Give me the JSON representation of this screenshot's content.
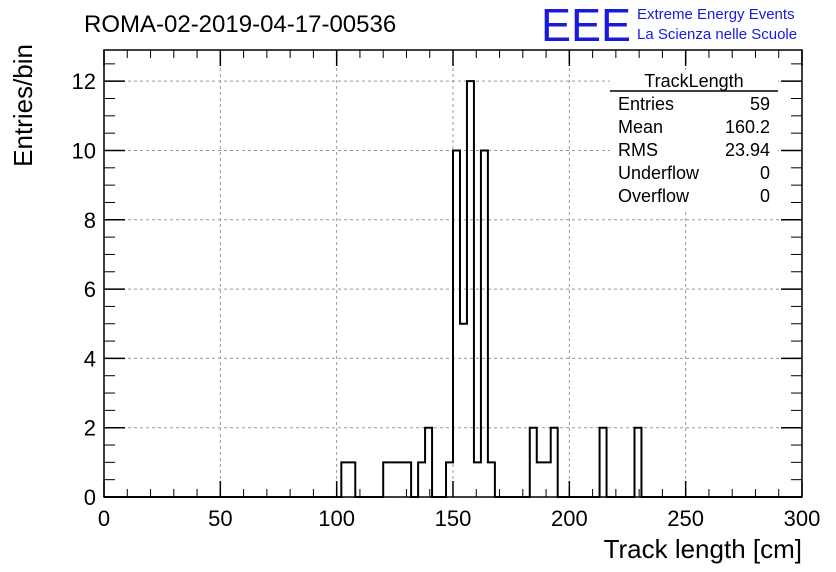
{
  "header": {
    "title": "ROMA-02-2019-04-17-00536",
    "logo_text": "EEE",
    "logo_line1": "Extreme Energy Events",
    "logo_line2": "La Scienza nelle Scuole",
    "logo_color": "#1a1adc"
  },
  "chart_data": {
    "type": "bar",
    "style": "step-histogram",
    "xlabel": "Track length [cm]",
    "ylabel": "Entries/bin",
    "xlim": [
      0,
      300
    ],
    "ylim": [
      0,
      12.9
    ],
    "grid": true,
    "xticks": [
      "0",
      "50",
      "100",
      "150",
      "200",
      "250",
      "300"
    ],
    "yticks": [
      "0",
      "2",
      "4",
      "6",
      "8",
      "10",
      "12"
    ],
    "bin_edges": [
      0,
      300
    ],
    "bin_count": 100,
    "bins": [
      {
        "x": 102,
        "value": 1
      },
      {
        "x": 105,
        "value": 1
      },
      {
        "x": 120,
        "value": 1
      },
      {
        "x": 123,
        "value": 1
      },
      {
        "x": 126,
        "value": 1
      },
      {
        "x": 129,
        "value": 1
      },
      {
        "x": 135,
        "value": 1
      },
      {
        "x": 138,
        "value": 2
      },
      {
        "x": 147,
        "value": 1
      },
      {
        "x": 150,
        "value": 10
      },
      {
        "x": 153,
        "value": 5
      },
      {
        "x": 156,
        "value": 12
      },
      {
        "x": 159,
        "value": 1
      },
      {
        "x": 162,
        "value": 10
      },
      {
        "x": 165,
        "value": 1
      },
      {
        "x": 183,
        "value": 2
      },
      {
        "x": 186,
        "value": 1
      },
      {
        "x": 189,
        "value": 1
      },
      {
        "x": 192,
        "value": 2
      },
      {
        "x": 213,
        "value": 2
      },
      {
        "x": 228,
        "value": 2
      }
    ],
    "stats_box": {
      "title": "TrackLength",
      "placement": "top-right",
      "rows": [
        {
          "label": "Entries",
          "value": "59"
        },
        {
          "label": "Mean",
          "value": "160.2"
        },
        {
          "label": "RMS",
          "value": "23.94"
        },
        {
          "label": "Underflow",
          "value": "0"
        },
        {
          "label": "Overflow",
          "value": "0"
        }
      ]
    }
  }
}
